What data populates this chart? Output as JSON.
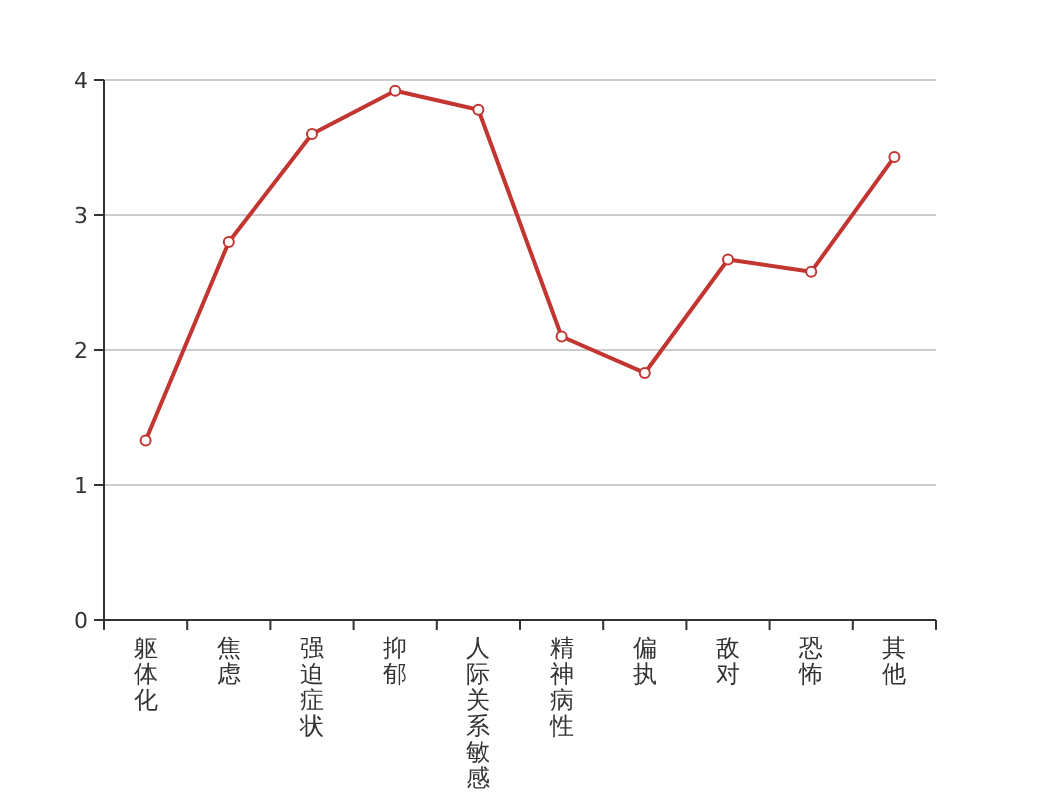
{
  "chart_data": {
    "type": "line",
    "categories": [
      "躯体化",
      "焦虑",
      "强迫症状",
      "抑郁",
      "人际关系敏感",
      "精神病性",
      "偏执",
      "敌对",
      "恐怖",
      "其他"
    ],
    "values": [
      1.33,
      2.8,
      3.6,
      3.92,
      3.78,
      2.1,
      1.83,
      2.67,
      2.58,
      3.43
    ],
    "color": "#c23531",
    "ylim": [
      0,
      4
    ],
    "yticks": [
      0,
      1,
      2,
      3,
      4
    ],
    "grid": "y",
    "marker": "circle",
    "line_style": "solid"
  }
}
